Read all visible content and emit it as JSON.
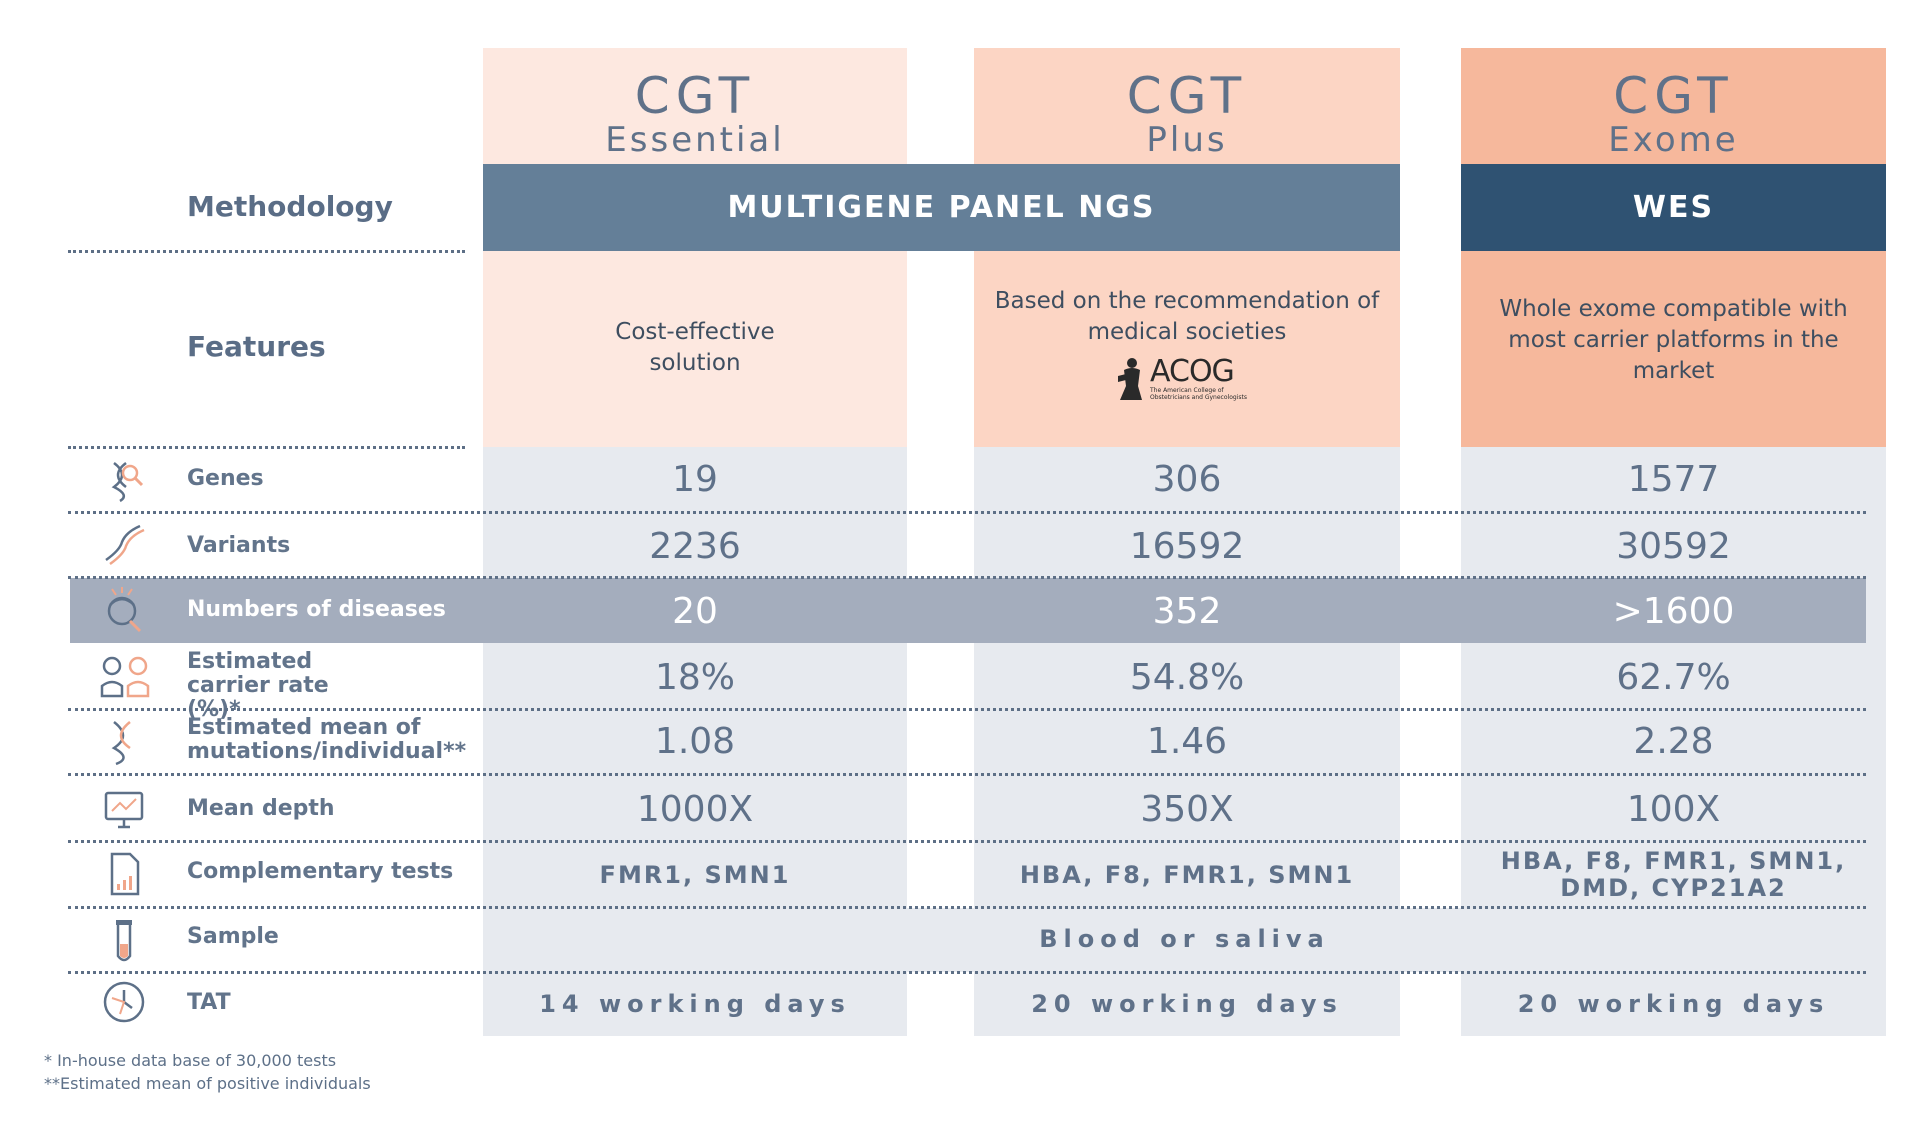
{
  "columns": [
    {
      "cgt": "CGT",
      "sub": "Essential"
    },
    {
      "cgt": "CGT",
      "sub": "Plus"
    },
    {
      "cgt": "CGT",
      "sub": "Exome"
    }
  ],
  "methodology": {
    "label": "Methodology",
    "panel": "MULTIGENE PANEL NGS",
    "wes": "WES"
  },
  "features": {
    "label": "Features",
    "values": [
      "Cost-effective solution",
      "Based on the recommendation of medical societies",
      "Whole exome compatible with most carrier platforms in the market"
    ],
    "logo": {
      "mark": "ACOG",
      "caption": "The American College of Obstetricians and Gynecologists"
    }
  },
  "rows": [
    {
      "label": "Genes",
      "icon": "dna-magnifier-icon",
      "values": [
        "19",
        "306",
        "1577"
      ]
    },
    {
      "label": "Variants",
      "icon": "dna-strand-icon",
      "values": [
        "2236",
        "16592",
        "30592"
      ]
    },
    {
      "label": "Numbers of diseases",
      "icon": "patient-head-icon",
      "values": [
        "20",
        "352",
        ">1600"
      ],
      "highlighted": true
    },
    {
      "label": "Estimated carrier rate (%)*",
      "icon": "people-icon",
      "values": [
        "18%",
        "54.8%",
        "62.7%"
      ]
    },
    {
      "label": "Estimated mean of mutations/individual**",
      "icon": "dna-icon",
      "values": [
        "1.08",
        "1.46",
        "2.28"
      ]
    },
    {
      "label": "Mean depth",
      "icon": "monitor-icon",
      "values": [
        "1000X",
        "350X",
        "100X"
      ]
    },
    {
      "label": "Complementary tests",
      "icon": "document-chart-icon",
      "values": [
        "FMR1, SMN1",
        "HBA, F8, FMR1, SMN1",
        "HBA, F8, FMR1, SMN1, DMD, CYP21A2"
      ]
    },
    {
      "label": "Sample",
      "icon": "test-tube-icon",
      "values": [
        "Blood or saliva"
      ]
    },
    {
      "label": "TAT",
      "icon": "clock-icon",
      "values": [
        "14 working days",
        "20 working days",
        "20 working days"
      ]
    }
  ],
  "footnotes": [
    "* In-house data base of 30,000 tests",
    "**Estimated mean of positive individuals"
  ],
  "colors": {
    "essential_header": "#fde8e0",
    "plus_header": "#fcd5c4",
    "exome_header": "#f6b89c",
    "panel_bar": "#647f98",
    "wes_bar": "#2f5272",
    "data_bg": "#e7eaef",
    "highlight_row": "#a4adbd",
    "accent_icon": "#f0a68a"
  }
}
